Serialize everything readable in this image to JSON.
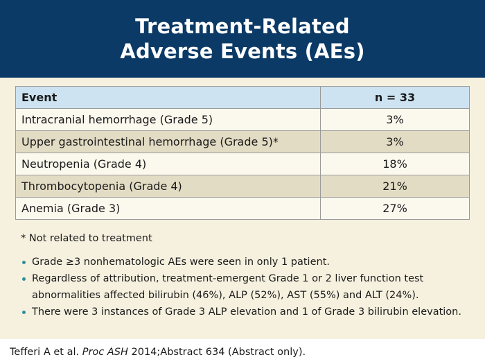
{
  "title": {
    "line1": "Treatment-Related",
    "line2": "Adverse Events (AEs)"
  },
  "table": {
    "headers": [
      "Event",
      "n = 33"
    ],
    "rows": [
      {
        "event": "Intracranial hemorrhage (Grade 5)",
        "value": "3%"
      },
      {
        "event": "Upper gastrointestinal hemorrhage (Grade 5)*",
        "value": "3%"
      },
      {
        "event": "Neutropenia (Grade 4)",
        "value": "18%"
      },
      {
        "event": "Thrombocytopenia (Grade 4)",
        "value": "21%"
      },
      {
        "event": "Anemia (Grade 3)",
        "value": "27%"
      }
    ]
  },
  "footnote": "* Not related to treatment",
  "bullets": [
    "Grade ≥3 nonhematologic AEs were seen in only 1 patient.",
    "Regardless of attribution, treatment-emergent Grade 1 or 2 liver function test abnormalities affected bilirubin (46%), ALP (52%), AST (55%) and ALT (24%).",
    "There were 3 instances of Grade 3 ALP elevation and 1 of Grade 3 bilirubin elevation."
  ],
  "citation": {
    "prefix": "Tefferi A et al. ",
    "journal": "Proc ASH",
    "suffix": " 2014;Abstract 634 (Abstract only)."
  },
  "colors": {
    "title_bar": "#0b3a66",
    "header_row": "#cde3f1",
    "row_light": "#fbf8ee",
    "row_dark": "#e3dcc4",
    "panel": "#f6f1df",
    "bullet": "#2f8f9a"
  }
}
